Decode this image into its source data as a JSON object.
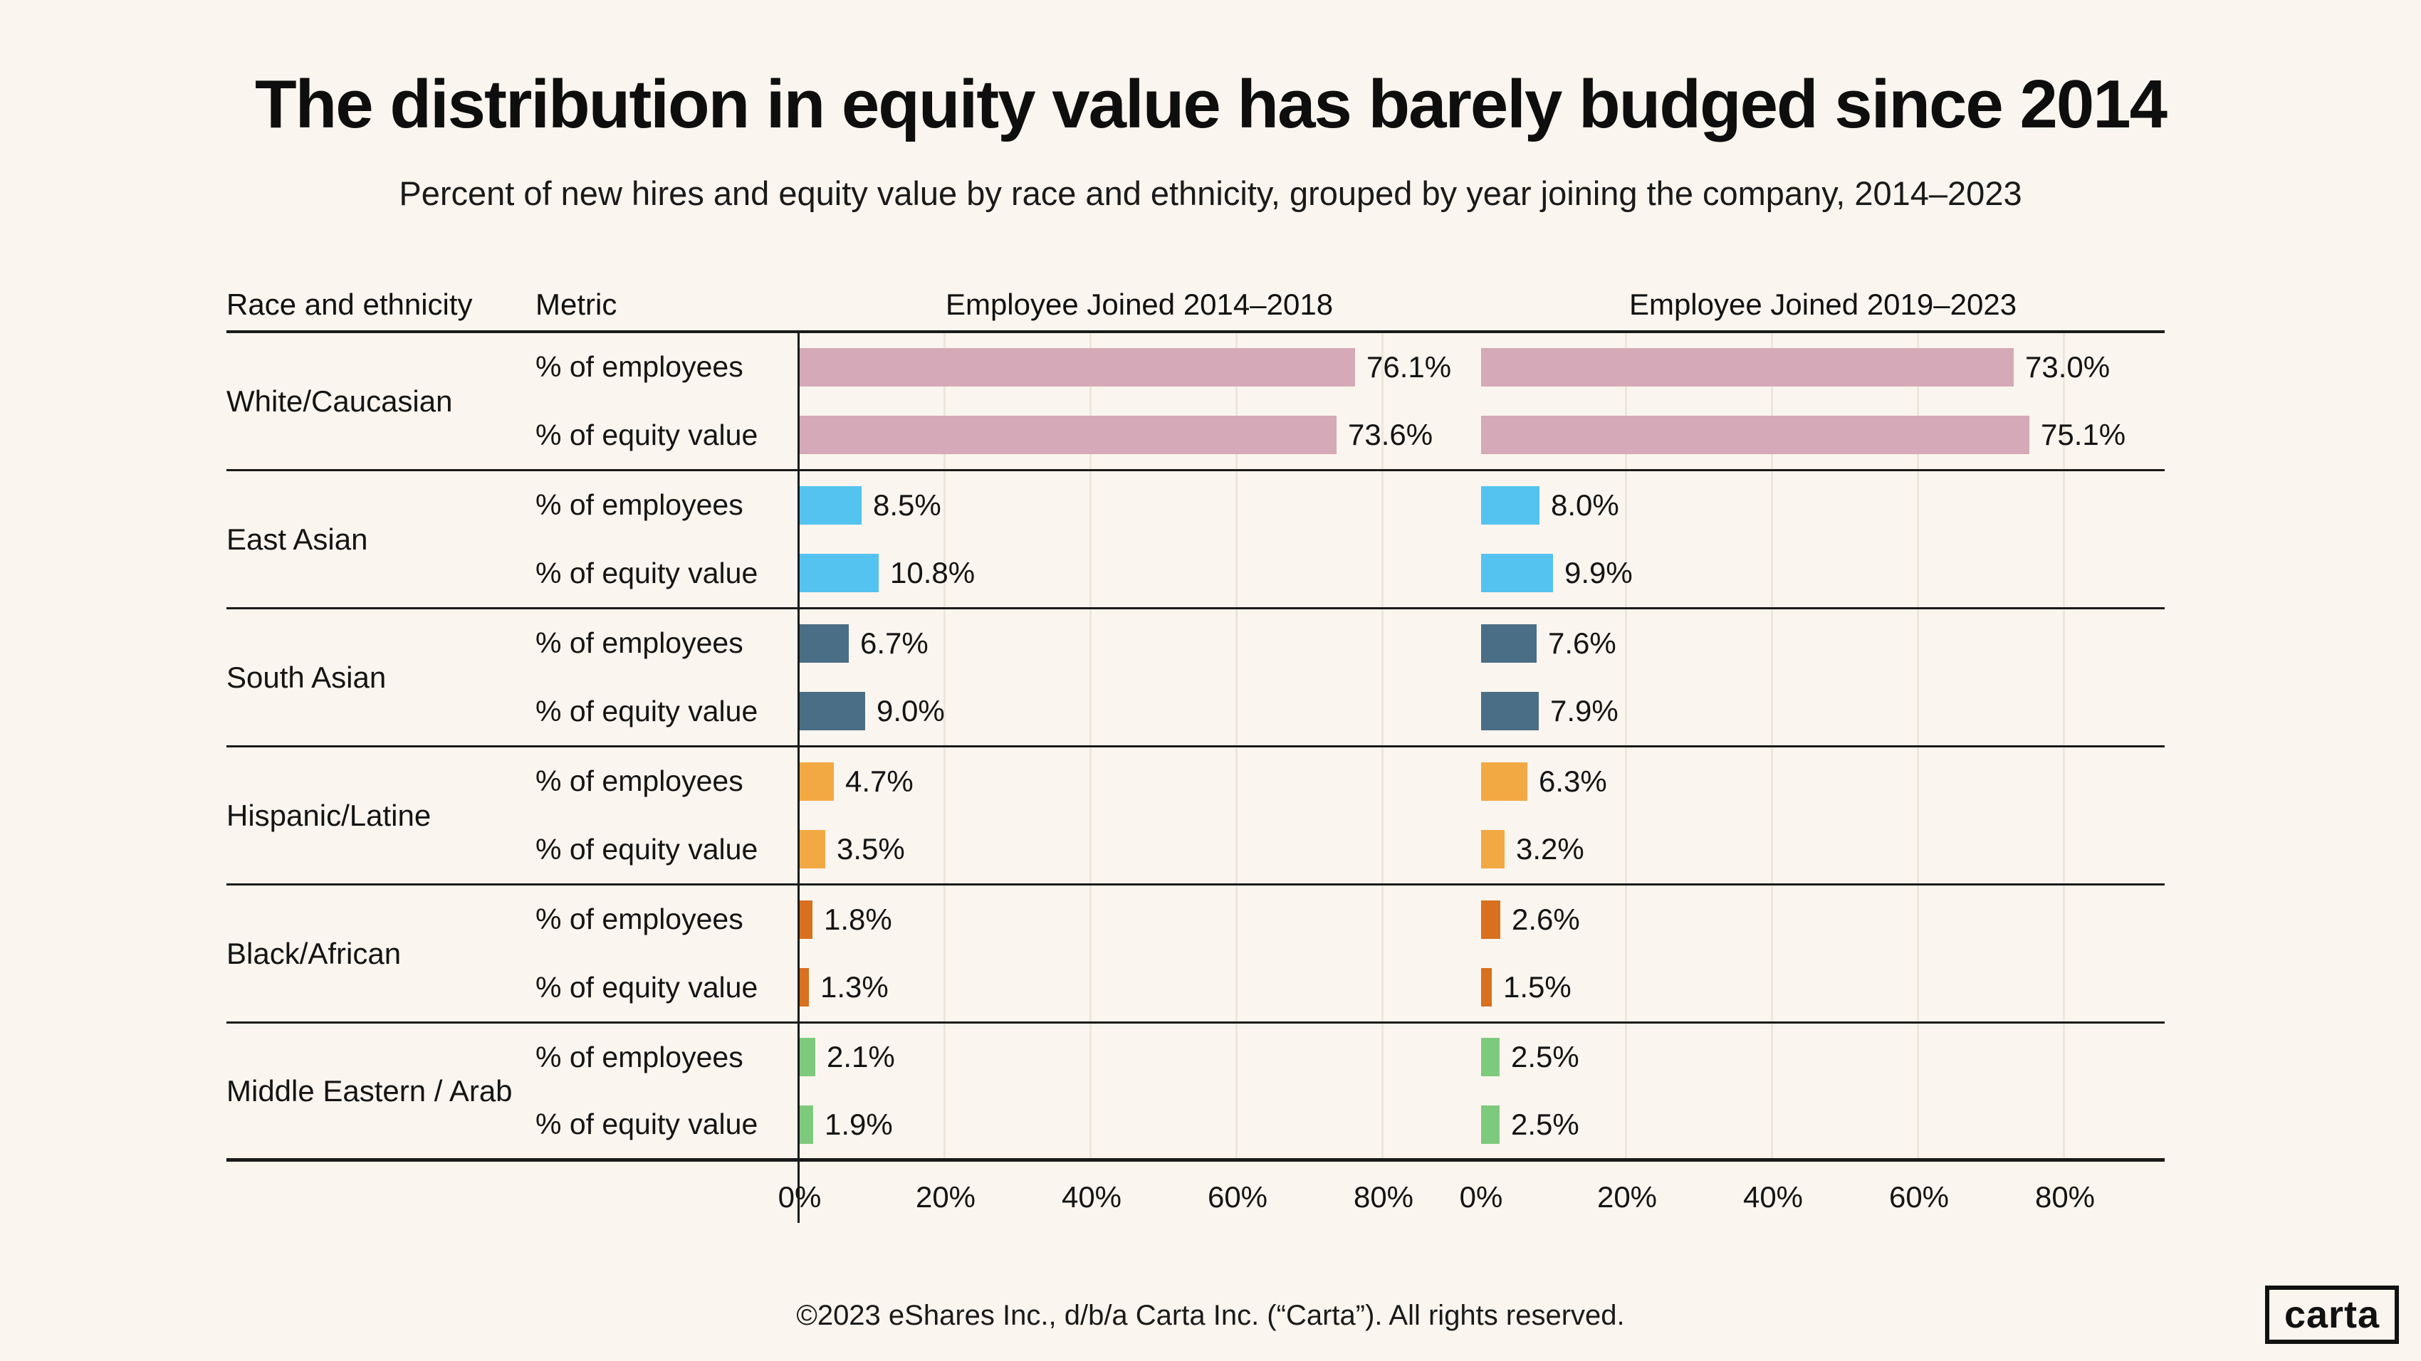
{
  "title": "The distribution in equity value has barely budged since 2014",
  "subtitle": "Percent of new hires and equity value by race and ethnicity, grouped by year joining the company, 2014–2023",
  "footer": "©2023 eShares Inc., d/b/a Carta Inc. (“Carta”). All rights reserved.",
  "logo_text": "carta",
  "colors": {
    "background": "#FAF5EE",
    "text": "#141414",
    "rule": "#1A1A1A",
    "gridline": "#EDE6DC"
  },
  "chart_data": {
    "type": "bar",
    "orientation": "horizontal",
    "columns": [
      "Race and ethnicity",
      "Metric",
      "Employee Joined 2014–2018",
      "Employee Joined 2019–2023"
    ],
    "metrics": [
      "% of employees",
      "% of equity value"
    ],
    "panels": [
      "joined_2014_2018",
      "joined_2019_2023"
    ],
    "x_ticks": [
      "0%",
      "20%",
      "40%",
      "60%",
      "80%"
    ],
    "x_tick_values": [
      0,
      20,
      40,
      60,
      80
    ],
    "x_axis_max": 93.6,
    "unit": "%",
    "grid": true,
    "groups": [
      {
        "race": "White/Caucasian",
        "color": "#D5A9B8",
        "joined_2014_2018": [
          76.1,
          73.6
        ],
        "joined_2019_2023": [
          73.0,
          75.1
        ]
      },
      {
        "race": "East Asian",
        "color": "#55C3F0",
        "joined_2014_2018": [
          8.5,
          10.8
        ],
        "joined_2019_2023": [
          8.0,
          9.9
        ]
      },
      {
        "race": "South Asian",
        "color": "#4A6E86",
        "joined_2014_2018": [
          6.7,
          9.0
        ],
        "joined_2019_2023": [
          7.6,
          7.9
        ]
      },
      {
        "race": "Hispanic/Latine",
        "color": "#F2A944",
        "joined_2014_2018": [
          4.7,
          3.5
        ],
        "joined_2019_2023": [
          6.3,
          3.2
        ]
      },
      {
        "race": "Black/African",
        "color": "#D8701F",
        "joined_2014_2018": [
          1.8,
          1.3
        ],
        "joined_2019_2023": [
          2.6,
          1.5
        ]
      },
      {
        "race": "Middle Eastern / Arab",
        "color": "#7ECA7D",
        "joined_2014_2018": [
          2.1,
          1.9
        ],
        "joined_2019_2023": [
          2.5,
          2.5
        ]
      }
    ]
  }
}
